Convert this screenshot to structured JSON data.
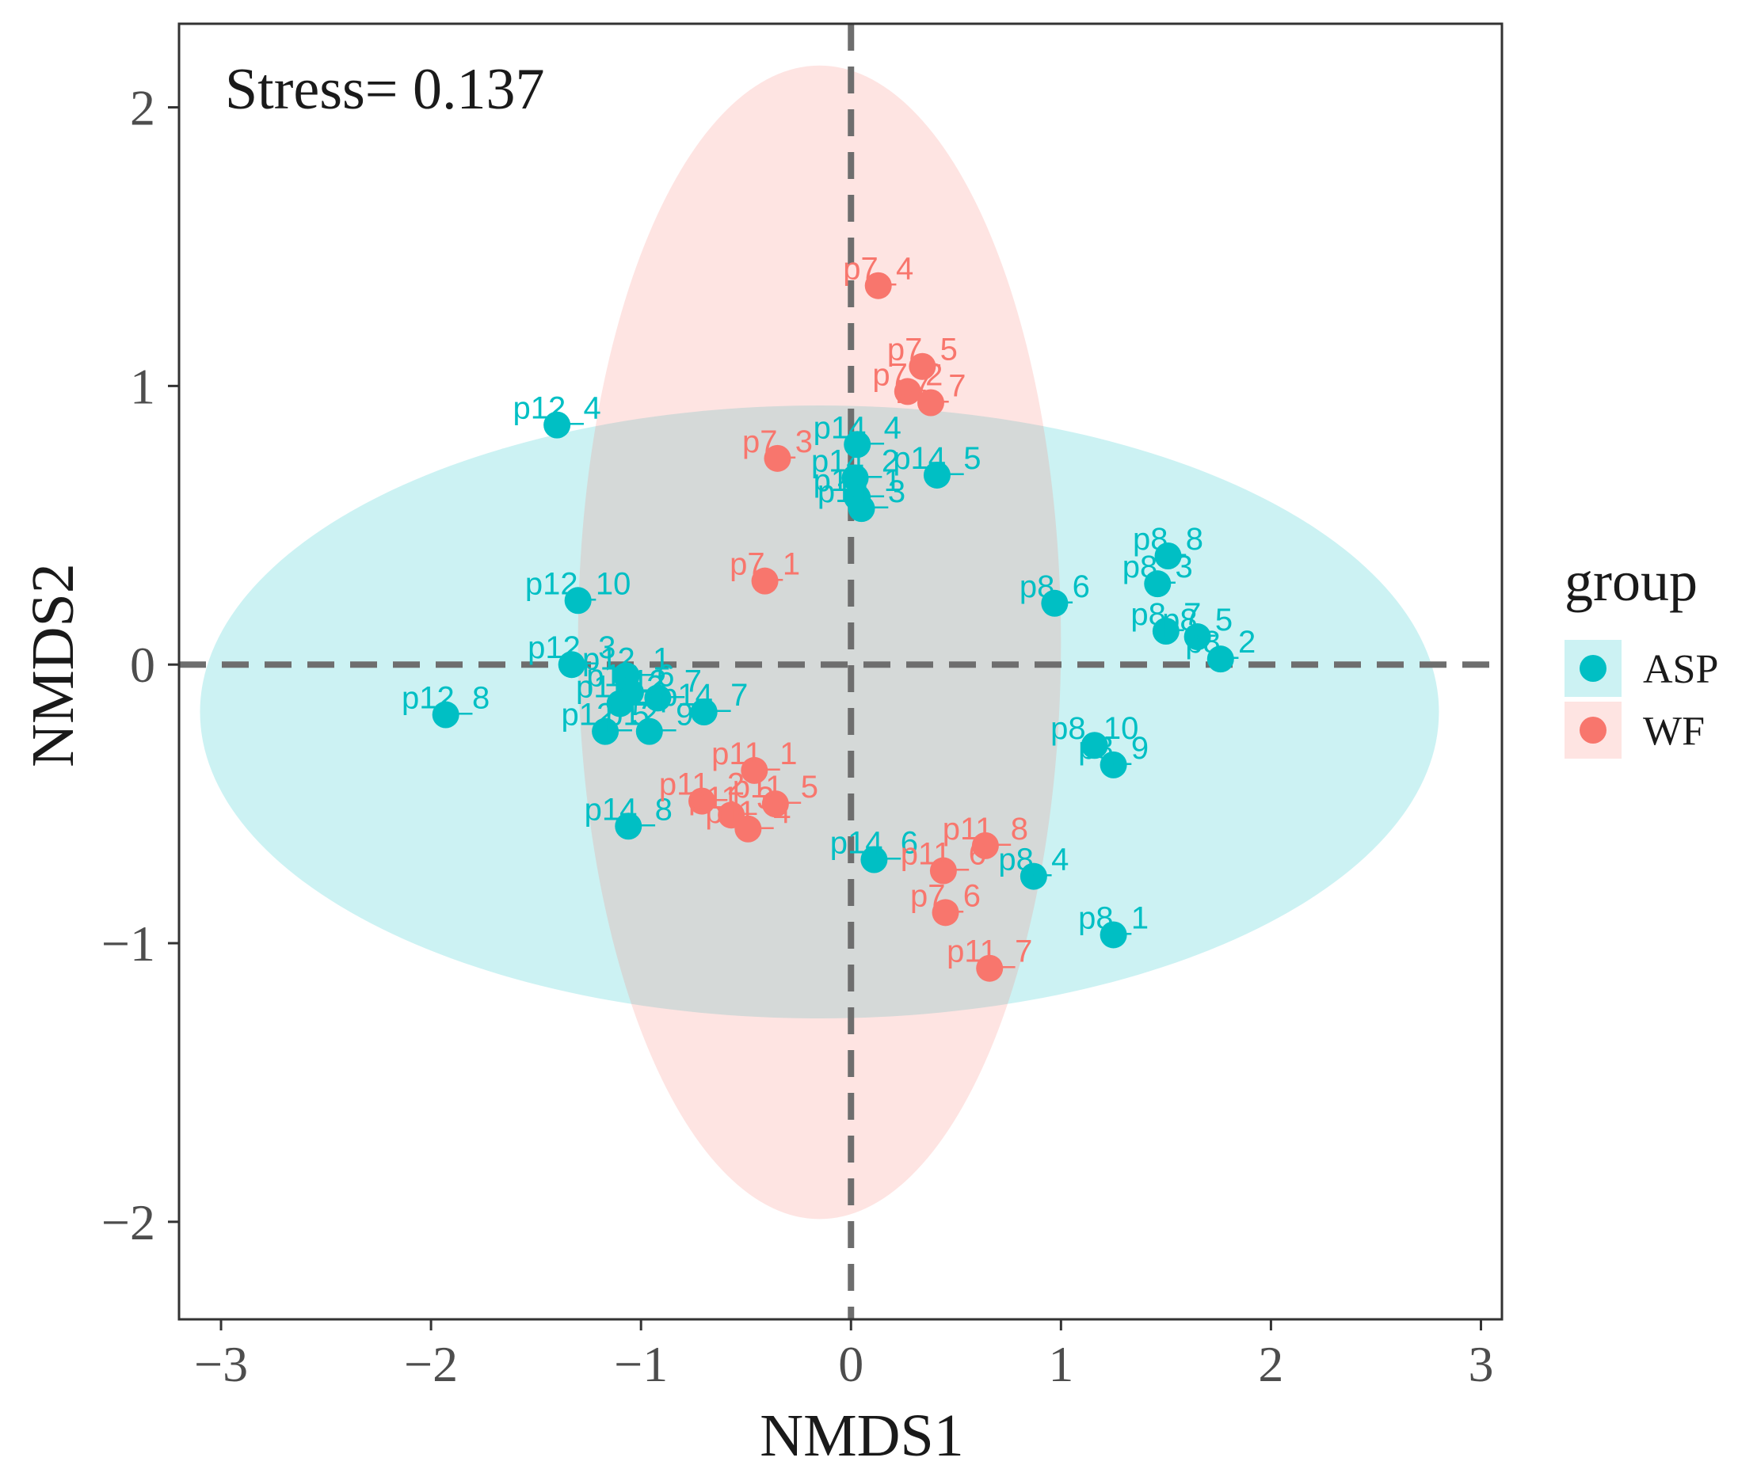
{
  "chart_data": {
    "type": "scatter",
    "title": "",
    "annotation": "Stress= 0.137",
    "xlabel": "NMDS1",
    "ylabel": "NMDS2",
    "xlim": [
      -3.2,
      3.1
    ],
    "ylim": [
      -2.35,
      2.3
    ],
    "xticks": [
      -3,
      -2,
      -1,
      0,
      1,
      2,
      3
    ],
    "yticks": [
      -2,
      -1,
      0,
      1,
      2
    ],
    "xtick_labels": [
      "−3",
      "−2",
      "−1",
      "0",
      "1",
      "2",
      "3"
    ],
    "ytick_labels": [
      "−2",
      "−1",
      "0",
      "1",
      "2"
    ],
    "grid": false,
    "reference_lines": {
      "x": 0,
      "y": 0,
      "style": "dashed"
    },
    "legend": {
      "title": "group",
      "position": "right",
      "entries": [
        {
          "name": "ASP",
          "color": "#00BFC4"
        },
        {
          "name": "WF",
          "color": "#F8766D"
        }
      ]
    },
    "ellipses": [
      {
        "group": "ASP",
        "center": [
          -0.15,
          -0.17
        ],
        "rx": 2.95,
        "ry": 1.1,
        "color": "#00BFC4"
      },
      {
        "group": "WF",
        "center": [
          -0.15,
          0.08
        ],
        "rx": 1.15,
        "ry": 2.07,
        "color": "#F8766D"
      }
    ],
    "series": [
      {
        "name": "ASP",
        "color": "#00BFC4",
        "points": [
          {
            "label": "p12_4",
            "x": -1.4,
            "y": 0.86
          },
          {
            "label": "p12_10",
            "x": -1.3,
            "y": 0.23
          },
          {
            "label": "p12_3",
            "x": -1.33,
            "y": 0.0
          },
          {
            "label": "p12_1",
            "x": -1.07,
            "y": -0.04
          },
          {
            "label": "p12_8",
            "x": -1.93,
            "y": -0.18
          },
          {
            "label": "p12_6",
            "x": -1.05,
            "y": -0.1
          },
          {
            "label": "p12_7",
            "x": -0.92,
            "y": -0.12
          },
          {
            "label": "p14_7",
            "x": -0.7,
            "y": -0.17
          },
          {
            "label": "p12_2",
            "x": -1.1,
            "y": -0.14
          },
          {
            "label": "p12_5",
            "x": -1.17,
            "y": -0.24
          },
          {
            "label": "p12_9",
            "x": -0.96,
            "y": -0.24
          },
          {
            "label": "p14_8",
            "x": -1.06,
            "y": -0.58
          },
          {
            "label": "p14_4",
            "x": 0.03,
            "y": 0.79
          },
          {
            "label": "p14_2",
            "x": 0.02,
            "y": 0.67
          },
          {
            "label": "p14_5",
            "x": 0.41,
            "y": 0.68
          },
          {
            "label": "p14_1",
            "x": 0.03,
            "y": 0.6
          },
          {
            "label": "p14_3",
            "x": 0.05,
            "y": 0.56
          },
          {
            "label": "p14_6",
            "x": 0.11,
            "y": -0.7
          },
          {
            "label": "p8_8",
            "x": 1.51,
            "y": 0.39
          },
          {
            "label": "p8_3",
            "x": 1.46,
            "y": 0.29
          },
          {
            "label": "p8_6",
            "x": 0.97,
            "y": 0.22
          },
          {
            "label": "p8_7",
            "x": 1.5,
            "y": 0.12
          },
          {
            "label": "p8_5",
            "x": 1.65,
            "y": 0.1
          },
          {
            "label": "p8_2",
            "x": 1.76,
            "y": 0.02
          },
          {
            "label": "p8_10",
            "x": 1.16,
            "y": -0.29
          },
          {
            "label": "p8_9",
            "x": 1.25,
            "y": -0.36
          },
          {
            "label": "p8_4",
            "x": 0.87,
            "y": -0.76
          },
          {
            "label": "p8_1",
            "x": 1.25,
            "y": -0.97
          }
        ]
      },
      {
        "name": "WF",
        "color": "#F8766D",
        "points": [
          {
            "label": "p7_4",
            "x": 0.13,
            "y": 1.36
          },
          {
            "label": "p7_5",
            "x": 0.34,
            "y": 1.07
          },
          {
            "label": "p7_2",
            "x": 0.27,
            "y": 0.98
          },
          {
            "label": "p7_7",
            "x": 0.38,
            "y": 0.94
          },
          {
            "label": "p7_3",
            "x": -0.35,
            "y": 0.74
          },
          {
            "label": "p7_1",
            "x": -0.41,
            "y": 0.3
          },
          {
            "label": "p11_1",
            "x": -0.46,
            "y": -0.38
          },
          {
            "label": "p11_5",
            "x": -0.36,
            "y": -0.5
          },
          {
            "label": "p11_2",
            "x": -0.71,
            "y": -0.49
          },
          {
            "label": "p11_3",
            "x": -0.57,
            "y": -0.54
          },
          {
            "label": "p11_4",
            "x": -0.49,
            "y": -0.59
          },
          {
            "label": "p11_8",
            "x": 0.64,
            "y": -0.65
          },
          {
            "label": "p11_6",
            "x": 0.44,
            "y": -0.74
          },
          {
            "label": "p7_6",
            "x": 0.45,
            "y": -0.89
          },
          {
            "label": "p11_7",
            "x": 0.66,
            "y": -1.09
          }
        ]
      }
    ]
  }
}
